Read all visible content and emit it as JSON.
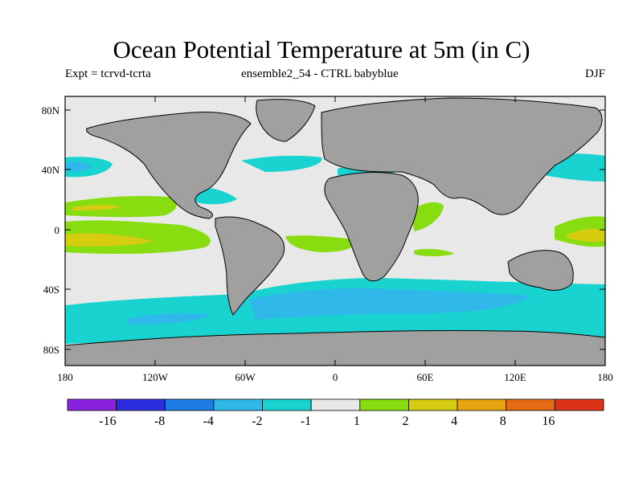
{
  "header": {
    "title": "Ocean Potential Temperature at 5m (in C)",
    "expt": "Expt = tcrvd-tcrta",
    "ensemble": "ensemble2_54 - CTRL babyblue",
    "season": "DJF"
  },
  "axes": {
    "lat_ticks": [
      "80N",
      "40N",
      "0",
      "40S",
      "80S"
    ],
    "lon_ticks": [
      "180",
      "120W",
      "60W",
      "0",
      "60E",
      "120E",
      "180"
    ]
  },
  "colorbar": {
    "colors": [
      "#8a22e0",
      "#2b2be0",
      "#1e7ce6",
      "#30b8ea",
      "#19d3d0",
      "#e8e8e8",
      "#88dd10",
      "#d6cc10",
      "#e6a412",
      "#e46a14",
      "#dc3218"
    ],
    "labels": [
      "-16",
      "-8",
      "-4",
      "-2",
      "-1",
      "1",
      "2",
      "4",
      "8",
      "16"
    ]
  },
  "colors": {
    "land": "#a0a0a0",
    "neutral": "#e8e8e8",
    "frame": "#000000"
  }
}
